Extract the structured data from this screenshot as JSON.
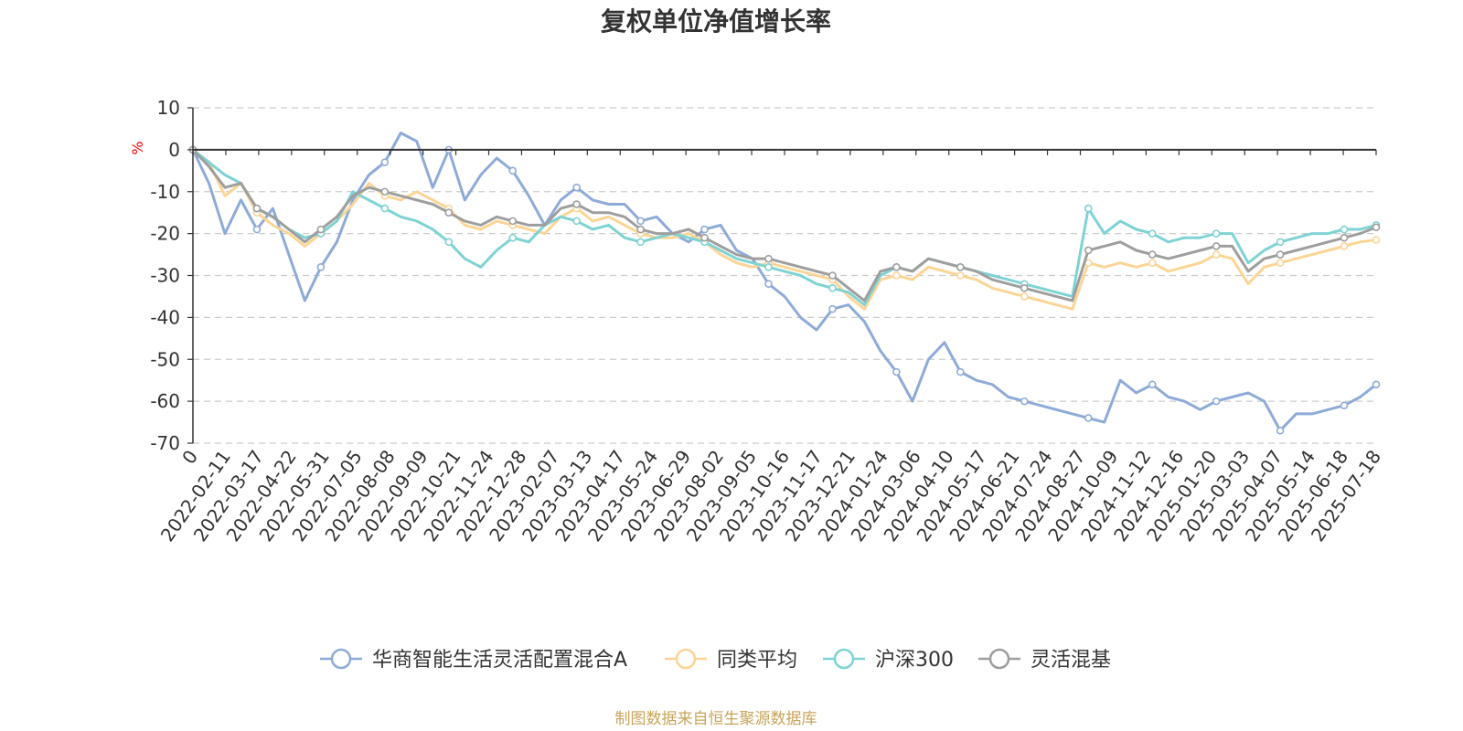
{
  "chart_data": {
    "type": "line",
    "title": "复权单位净值增长率",
    "y_unit": "%",
    "ylim": [
      -70,
      10
    ],
    "y_ticks": [
      10,
      0,
      -10,
      -20,
      -30,
      -40,
      -50,
      -60,
      -70
    ],
    "x_ticks": [
      "0",
      "2022-02-11",
      "2022-03-17",
      "2022-04-22",
      "2022-05-31",
      "2022-07-05",
      "2022-08-08",
      "2022-09-09",
      "2022-10-21",
      "2022-11-24",
      "2022-12-28",
      "2023-02-07",
      "2023-03-13",
      "2023-04-17",
      "2023-05-24",
      "2023-06-29",
      "2023-08-02",
      "2023-09-05",
      "2023-10-16",
      "2023-11-17",
      "2023-12-21",
      "2024-01-24",
      "2024-03-06",
      "2024-04-10",
      "2024-05-17",
      "2024-06-21",
      "2024-07-24",
      "2024-08-27",
      "2024-10-09",
      "2024-11-12",
      "2024-12-16",
      "2025-01-20",
      "2025-03-03",
      "2025-04-07",
      "2025-05-14",
      "2025-06-18",
      "2025-07-18"
    ],
    "grid": "horizontal dashed",
    "legend_position": "bottom",
    "series": [
      {
        "name": "华商智能生活灵活配置混合A",
        "color": "#8eabd8",
        "values": [
          0,
          -8,
          -20,
          -12,
          -19,
          -14,
          -25,
          -36,
          -28,
          -22,
          -12,
          -6,
          -3,
          4,
          2,
          -9,
          0,
          -12,
          -6,
          -2,
          -5,
          -11,
          -18,
          -12,
          -9,
          -12,
          -13,
          -13,
          -17,
          -16,
          -20,
          -22,
          -19,
          -18,
          -24,
          -26,
          -32,
          -35,
          -40,
          -43,
          -38,
          -37,
          -41,
          -48,
          -53,
          -60,
          -50,
          -46,
          -53,
          -55,
          -56,
          -59,
          -60,
          -61,
          -62,
          -63,
          -64,
          -65,
          -55,
          -58,
          -56,
          -59,
          -60,
          -62,
          -60,
          -59,
          -58,
          -60,
          -67,
          -63,
          -63,
          -62,
          -61,
          -59,
          -56
        ]
      },
      {
        "name": "同类平均",
        "color": "#fcd595",
        "values": [
          0,
          -3,
          -11,
          -8,
          -15,
          -18,
          -20,
          -23,
          -20,
          -17,
          -13,
          -8,
          -11,
          -12,
          -10,
          -12,
          -14,
          -18,
          -19,
          -17,
          -18,
          -19,
          -20,
          -16,
          -14,
          -17,
          -16,
          -18,
          -20,
          -21,
          -21,
          -20,
          -22,
          -25,
          -27,
          -28,
          -27,
          -28,
          -29,
          -30,
          -31,
          -35,
          -38,
          -31,
          -30,
          -31,
          -28,
          -29,
          -30,
          -31,
          -33,
          -34,
          -35,
          -36,
          -37,
          -38,
          -27,
          -28,
          -27,
          -28,
          -27,
          -29,
          -28,
          -27,
          -25,
          -26,
          -32,
          -28,
          -27,
          -26,
          -25,
          -24,
          -23,
          -22,
          -21.5
        ]
      },
      {
        "name": "沪深300",
        "color": "#7ed3d4",
        "values": [
          0,
          -3,
          -6,
          -8,
          -14,
          -16,
          -19,
          -21,
          -20,
          -17,
          -10,
          -12,
          -14,
          -16,
          -17,
          -19,
          -22,
          -26,
          -28,
          -24,
          -21,
          -22,
          -18,
          -16,
          -17,
          -19,
          -18,
          -21,
          -22,
          -21,
          -20,
          -21,
          -22,
          -24,
          -26,
          -27,
          -28,
          -29,
          -30,
          -32,
          -33,
          -34,
          -37,
          -30,
          -28,
          -29,
          -26,
          -27,
          -28,
          -29,
          -30,
          -31,
          -32,
          -33,
          -34,
          -35,
          -14,
          -20,
          -17,
          -19,
          -20,
          -22,
          -21,
          -21,
          -20,
          -20,
          -27,
          -24,
          -22,
          -21,
          -20,
          -20,
          -19,
          -19,
          -18
        ]
      },
      {
        "name": "灵活混基",
        "color": "#9e9e9e",
        "values": [
          0,
          -4,
          -9,
          -8,
          -14,
          -16,
          -19,
          -22,
          -19,
          -16,
          -11,
          -9,
          -10,
          -11,
          -12,
          -13,
          -15,
          -17,
          -18,
          -16,
          -17,
          -18,
          -18,
          -14,
          -13,
          -15,
          -15,
          -16,
          -19,
          -20,
          -20,
          -19,
          -21,
          -23,
          -25,
          -26,
          -26,
          -27,
          -28,
          -29,
          -30,
          -33,
          -36,
          -29,
          -28,
          -29,
          -26,
          -27,
          -28,
          -29,
          -31,
          -32,
          -33,
          -34,
          -35,
          -36,
          -24,
          -23,
          -22,
          -24,
          -25,
          -26,
          -25,
          -24,
          -23,
          -23,
          -29,
          -26,
          -25,
          -24,
          -23,
          -22,
          -21,
          -20,
          -18.5
        ]
      }
    ]
  },
  "source_note": "制图数据来自恒生聚源数据库"
}
